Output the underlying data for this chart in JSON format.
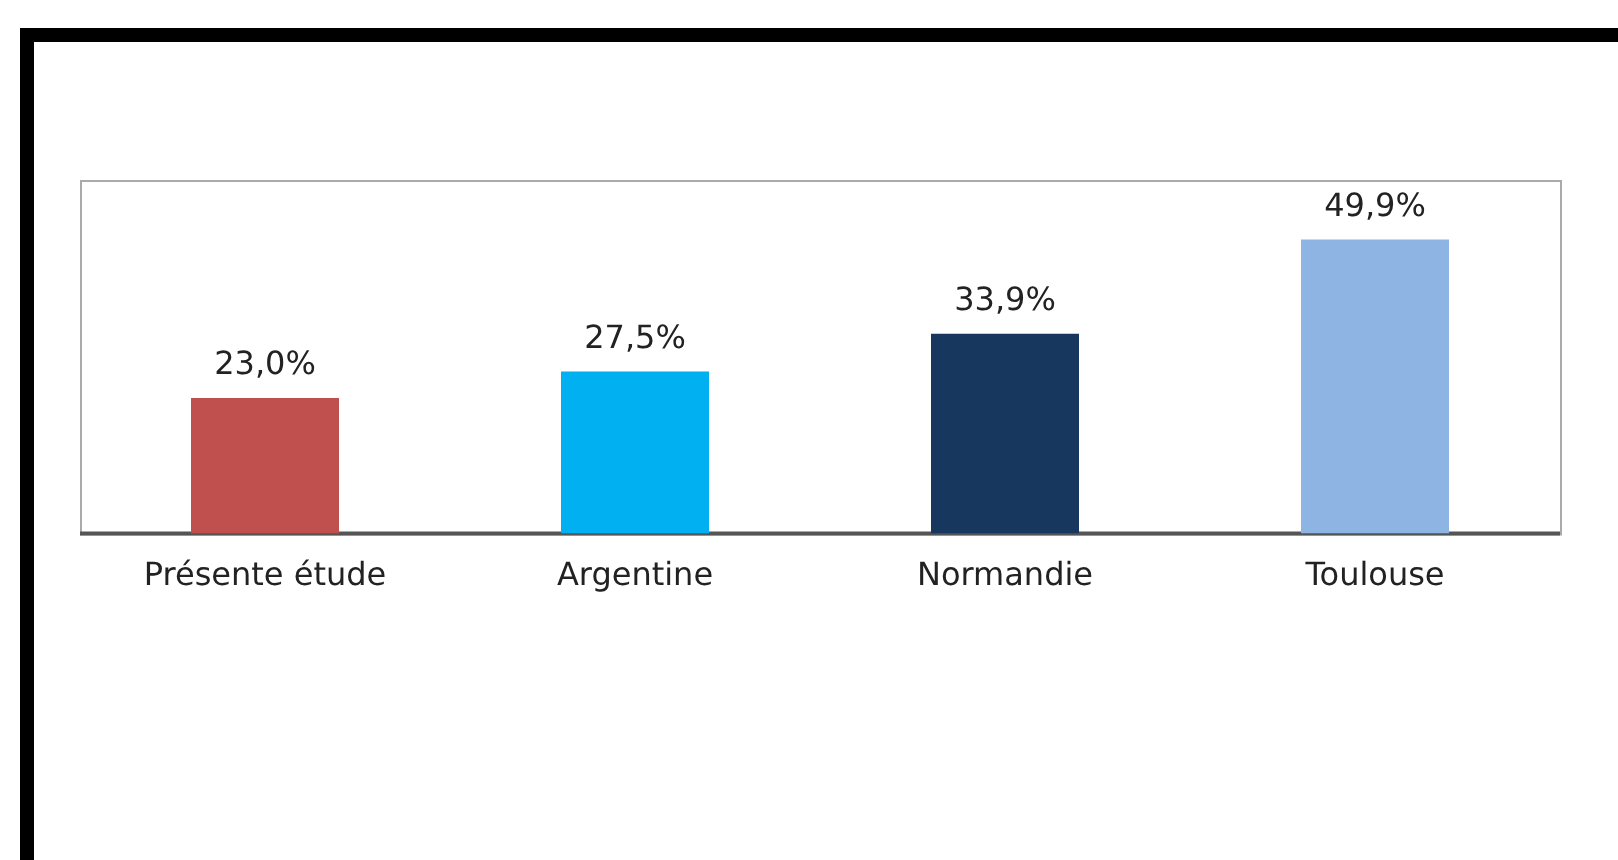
{
  "chart_data": {
    "type": "bar",
    "categories": [
      "Présente étude",
      "Argentine",
      "Normandie",
      "Toulouse"
    ],
    "values": [
      23.0,
      27.5,
      33.9,
      49.9
    ],
    "colors": [
      "#c0504d",
      "#00b0f0",
      "#17375e",
      "#8db4e2"
    ],
    "value_labels": [
      "23,0%",
      "27,5%",
      "33,9%",
      "49,9%"
    ],
    "ylim": [
      0,
      60
    ],
    "grid": false,
    "legend": false
  }
}
